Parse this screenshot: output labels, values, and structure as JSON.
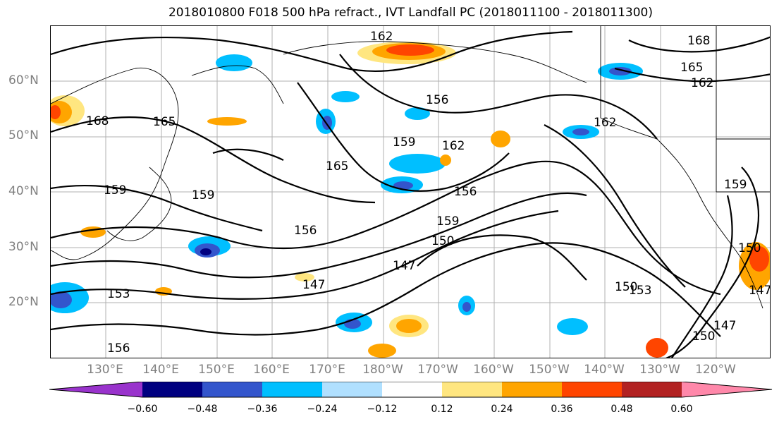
{
  "title": "2018010800 F018 500 hPa refract., IVT Landfall PC (2018011100 - 2018011300)",
  "lat_labels": [
    "60°N",
    "50°N",
    "40°N",
    "30°N",
    "20°N"
  ],
  "lon_labels": [
    "130°E",
    "140°E",
    "150°E",
    "160°E",
    "170°E",
    "180°W",
    "170°W",
    "160°W",
    "150°W",
    "140°W",
    "130°W",
    "120°W"
  ],
  "contour_labels": [
    "162",
    "156",
    "159",
    "165",
    "168",
    "147",
    "150",
    "153",
    "159",
    "156",
    "165",
    "162",
    "168",
    "165",
    "162",
    "156",
    "159",
    "162",
    "165",
    "156",
    "159",
    "150",
    "147",
    "153",
    "156",
    "150",
    "153",
    "147",
    "159",
    "150",
    "147"
  ],
  "colorbar": {
    "ticks": [
      "−0.60",
      "−0.48",
      "−0.36",
      "−0.24",
      "−0.12",
      "0.12",
      "0.24",
      "0.36",
      "0.48",
      "0.60"
    ],
    "colors": [
      "#9933cc",
      "#000080",
      "#3355cc",
      "#00bfff",
      "#b0e0ff",
      "#ffffff",
      "#ffe680",
      "#ffa500",
      "#ff4500",
      "#b22222",
      "#ff88aa"
    ]
  }
}
